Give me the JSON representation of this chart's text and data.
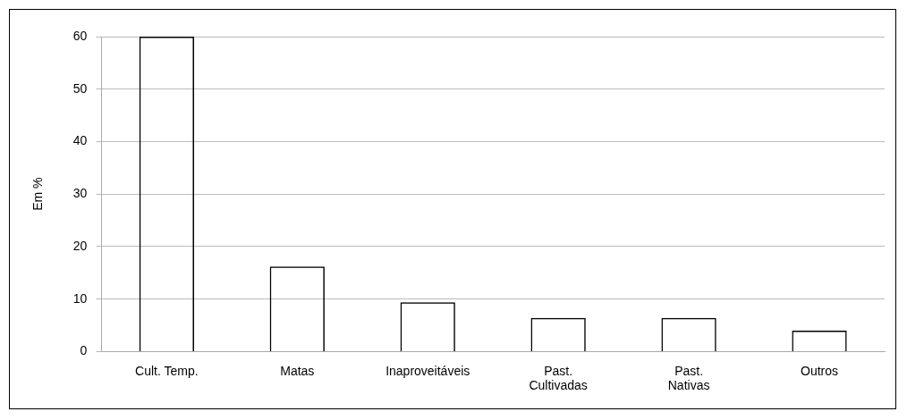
{
  "chart_data": {
    "type": "bar",
    "ylabel": "Em %",
    "categories": [
      "Cult. Temp.",
      "Matas",
      "Inaproveitáveis",
      "Past.\nCultivadas",
      "Past.\nNativas",
      "Outros"
    ],
    "values": [
      60,
      16.2,
      9.4,
      6.4,
      6.4,
      4.0
    ],
    "color": "#000000",
    "ylim": [
      0,
      60
    ],
    "yticks": [
      0,
      10,
      20,
      30,
      40,
      50,
      60
    ],
    "grid": "y",
    "legend": false
  }
}
